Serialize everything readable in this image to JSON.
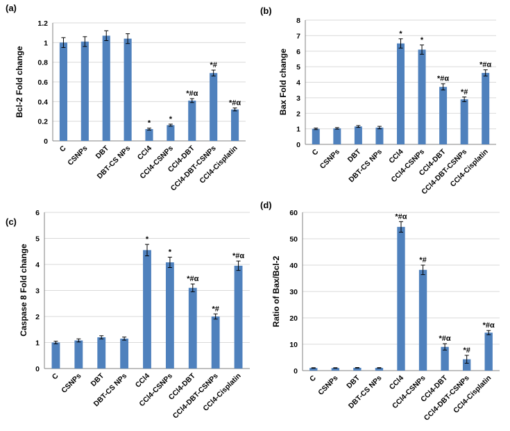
{
  "colors": {
    "bar": "#4f81bd",
    "axis": "#808080",
    "grid": "#d9d9d9",
    "error": "#000000"
  },
  "chart_data": [
    {
      "type": "bar",
      "panel": "(a)",
      "title": "",
      "xlabel": "",
      "ylabel": "Bcl-2 Fold change",
      "ylim": [
        0,
        1.2
      ],
      "yticks": [
        "0",
        "0.2",
        "0.4",
        "0.6",
        "0.8",
        "1",
        "1.2"
      ],
      "categories": [
        "C",
        "CSNPs",
        "DBT",
        "DBT-CS NPs",
        "CCl4",
        "CCl4-CSNPs",
        "CCl4-DBT",
        "CCl4-DBT-CSNPs",
        "CCl4-Cisplatin"
      ],
      "values": [
        1.0,
        1.01,
        1.07,
        1.04,
        0.12,
        0.16,
        0.41,
        0.69,
        0.32
      ],
      "errors": [
        0.05,
        0.05,
        0.05,
        0.05,
        0.01,
        0.01,
        0.02,
        0.03,
        0.015
      ],
      "annotations": [
        "",
        "",
        "",
        "",
        "*",
        "*",
        "*#α",
        "*#",
        "*#α"
      ]
    },
    {
      "type": "bar",
      "panel": "(b)",
      "title": "",
      "xlabel": "",
      "ylabel": "Bax Fold change",
      "ylim": [
        0,
        8
      ],
      "yticks": [
        "0",
        "1",
        "2",
        "3",
        "4",
        "5",
        "6",
        "7",
        "8"
      ],
      "categories": [
        "C",
        "CSNPs",
        "DBT",
        "DBT-CS NPs",
        "CCl4",
        "CCl4-CSNPs",
        "CCl4-DBT",
        "CCl4-DBT-CSNPs",
        "CCl4-Cisplatin"
      ],
      "values": [
        1.0,
        1.03,
        1.15,
        1.08,
        6.5,
        6.1,
        3.7,
        2.9,
        4.6
      ],
      "errors": [
        0.05,
        0.05,
        0.06,
        0.08,
        0.3,
        0.3,
        0.2,
        0.15,
        0.2
      ],
      "annotations": [
        "",
        "",
        "",
        "",
        "*",
        "*",
        "*#α",
        "*#",
        "*#α"
      ]
    },
    {
      "type": "bar",
      "panel": "(c)",
      "title": "",
      "xlabel": "",
      "ylabel": "Caspase 8 Fold change",
      "ylim": [
        0,
        6
      ],
      "yticks": [
        "0",
        "1",
        "2",
        "3",
        "4",
        "5",
        "6"
      ],
      "categories": [
        "C",
        "CSNPs",
        "DBT",
        "DBT-CS NPs",
        "CCl4",
        "CCl4-CSNPs",
        "CCl4-DBT",
        "CCl4-DBT-CSNPs",
        "CCl4-Cisplatin"
      ],
      "values": [
        1.0,
        1.08,
        1.2,
        1.15,
        4.55,
        4.08,
        3.1,
        2.0,
        3.95
      ],
      "errors": [
        0.05,
        0.06,
        0.06,
        0.06,
        0.22,
        0.2,
        0.15,
        0.1,
        0.18
      ],
      "annotations": [
        "",
        "",
        "",
        "",
        "*",
        "*",
        "*#α",
        "*#",
        "*#α"
      ]
    },
    {
      "type": "bar",
      "panel": "(d)",
      "title": "",
      "xlabel": "",
      "ylabel": "Ratio of Bax/Bcl-2",
      "ylim": [
        0,
        60
      ],
      "yticks": [
        "0",
        "10",
        "20",
        "30",
        "40",
        "50",
        "60"
      ],
      "categories": [
        "C",
        "CSNPs",
        "DBT",
        "DBT-CS NPs",
        "CCl4",
        "CCl4-CSNPs",
        "CCl4-DBT",
        "CCl4-DBT-CSNPs",
        "CCl4-Cisplatin"
      ],
      "values": [
        1.0,
        1.0,
        1.07,
        1.03,
        54.5,
        38.2,
        9.0,
        4.3,
        14.4
      ],
      "errors": [
        0.1,
        0.1,
        0.1,
        0.1,
        2.0,
        1.8,
        1.2,
        1.5,
        0.8
      ],
      "annotations": [
        "",
        "",
        "",
        "",
        "*#α",
        "*#",
        "*#α",
        "*#",
        "*#α"
      ]
    }
  ]
}
